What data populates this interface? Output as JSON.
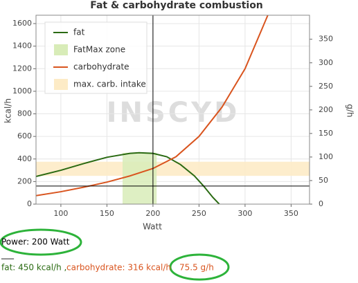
{
  "chart_data": {
    "type": "line",
    "title": "Fat & carbohydrate combustion",
    "xlabel": "Watt",
    "ylabel": "kcal/h",
    "y2label": "g/h",
    "watermark": "INSCYD",
    "xlim": [
      73,
      370
    ],
    "xticks": [
      100,
      150,
      200,
      250,
      300,
      350
    ],
    "ylim": [
      0,
      1674
    ],
    "yticks": [
      0,
      200,
      400,
      600,
      800,
      1000,
      1200,
      1400,
      1600
    ],
    "y2lim": [
      0,
      401
    ],
    "y2ticks": [
      0,
      50,
      100,
      150,
      200,
      250,
      300,
      350
    ],
    "grid": true,
    "series": [
      {
        "name": "fat",
        "color": "#2a6a12",
        "x": [
          73,
          100,
          125,
          150,
          175,
          185,
          200,
          215,
          230,
          245,
          255,
          265,
          272
        ],
        "values": [
          245,
          300,
          360,
          415,
          450,
          455,
          450,
          420,
          350,
          250,
          160,
          60,
          0
        ]
      },
      {
        "name": "carbohydrate",
        "color": "#d9541e",
        "x": [
          73,
          100,
          125,
          150,
          175,
          200,
          225,
          250,
          275,
          300,
          325
        ],
        "values": [
          75,
          110,
          150,
          195,
          250,
          316,
          420,
          600,
          860,
          1200,
          1680
        ]
      }
    ],
    "fatmax_zone": {
      "name": "FatMax zone",
      "color": "#d8ecb8",
      "range": [
        167,
        204
      ],
      "top": 455
    },
    "carb_band": {
      "name": "max. carb. intake",
      "color": "#fdebc6",
      "range": [
        60,
        90
      ]
    },
    "cursor": {
      "x": 200,
      "y": 160
    }
  },
  "readout": {
    "power": "Power: 200 Watt",
    "separator": "___",
    "fat": "fat: 450 kcal/h ,",
    "carbohydrate": "carbohydrate: 316 kcal/h",
    "carb_rate": "75.5 g/h"
  }
}
